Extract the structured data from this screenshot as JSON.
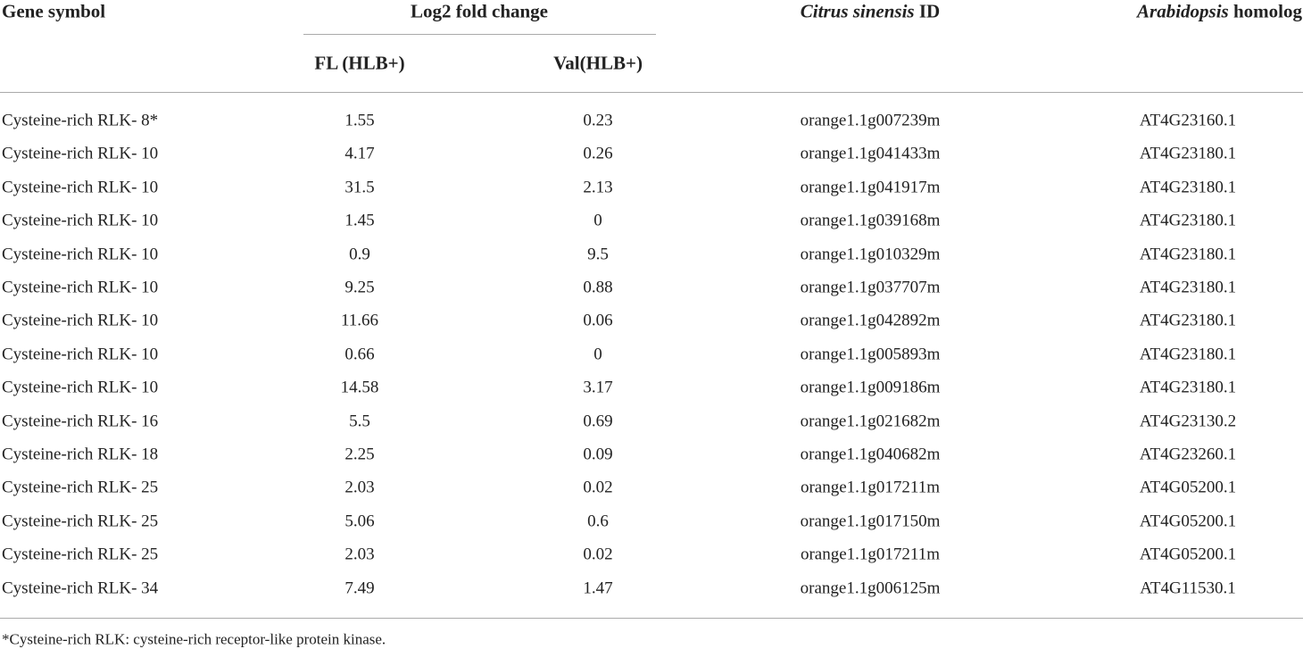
{
  "header": {
    "gene_symbol": "Gene symbol",
    "log2_fold_change": "Log2 fold change",
    "fl": "FL (HLB+)",
    "val": "Val(HLB+)",
    "citrus_id": [
      "Citrus sinensis",
      " ID"
    ],
    "arabidopsis": [
      "Arabidopsis",
      " homolog"
    ]
  },
  "table": {
    "rows": [
      [
        "Cysteine-rich RLK- 8*",
        "1.55",
        "0.23",
        "orange1.1g007239m",
        "AT4G23160.1"
      ],
      [
        "Cysteine-rich RLK- 10",
        "4.17",
        "0.26",
        "orange1.1g041433m",
        "AT4G23180.1"
      ],
      [
        "Cysteine-rich RLK- 10",
        "31.5",
        "2.13",
        "orange1.1g041917m",
        "AT4G23180.1"
      ],
      [
        "Cysteine-rich RLK- 10",
        "1.45",
        "0",
        "orange1.1g039168m",
        "AT4G23180.1"
      ],
      [
        "Cysteine-rich RLK- 10",
        "0.9",
        "9.5",
        "orange1.1g010329m",
        "AT4G23180.1"
      ],
      [
        "Cysteine-rich RLK- 10",
        "9.25",
        "0.88",
        "orange1.1g037707m",
        "AT4G23180.1"
      ],
      [
        "Cysteine-rich RLK- 10",
        "11.66",
        "0.06",
        "orange1.1g042892m",
        "AT4G23180.1"
      ],
      [
        "Cysteine-rich RLK- 10",
        "0.66",
        "0",
        "orange1.1g005893m",
        "AT4G23180.1"
      ],
      [
        "Cysteine-rich RLK- 10",
        "14.58",
        "3.17",
        "orange1.1g009186m",
        "AT4G23180.1"
      ],
      [
        "Cysteine-rich RLK- 16",
        "5.5",
        "0.69",
        "orange1.1g021682m",
        "AT4G23130.2"
      ],
      [
        "Cysteine-rich RLK- 18",
        "2.25",
        "0.09",
        "orange1.1g040682m",
        "AT4G23260.1"
      ],
      [
        "Cysteine-rich RLK- 25",
        "2.03",
        "0.02",
        "orange1.1g017211m",
        "AT4G05200.1"
      ],
      [
        "Cysteine-rich RLK- 25",
        "5.06",
        "0.6",
        "orange1.1g017150m",
        "AT4G05200.1"
      ],
      [
        "Cysteine-rich RLK- 25",
        "2.03",
        "0.02",
        "orange1.1g017211m",
        "AT4G05200.1"
      ],
      [
        "Cysteine-rich RLK- 34",
        "7.49",
        "1.47",
        "orange1.1g006125m",
        "AT4G11530.1"
      ]
    ]
  },
  "footnote": "*Cysteine-rich RLK: cysteine-rich receptor-like protein kinase."
}
